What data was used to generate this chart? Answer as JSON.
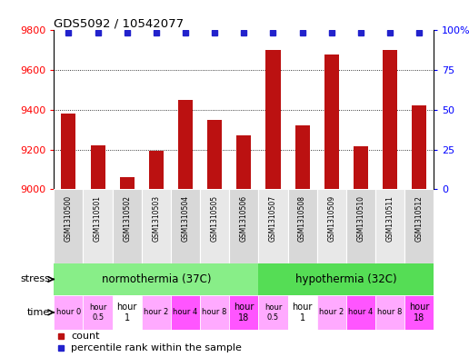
{
  "title": "GDS5092 / 10542077",
  "samples": [
    "GSM1310500",
    "GSM1310501",
    "GSM1310502",
    "GSM1310503",
    "GSM1310504",
    "GSM1310505",
    "GSM1310506",
    "GSM1310507",
    "GSM1310508",
    "GSM1310509",
    "GSM1310510",
    "GSM1310511",
    "GSM1310512"
  ],
  "counts": [
    9380,
    9220,
    9060,
    9195,
    9450,
    9350,
    9270,
    9700,
    9320,
    9680,
    9215,
    9700,
    9420
  ],
  "ylim": [
    9000,
    9800
  ],
  "yticks": [
    9000,
    9200,
    9400,
    9600,
    9800
  ],
  "right_yticks": [
    0,
    25,
    50,
    75,
    100
  ],
  "right_ylabels": [
    "0",
    "25",
    "50",
    "75",
    "100%"
  ],
  "bar_color": "#bb1111",
  "dot_color": "#2222cc",
  "normothermia_label": "normothermia (37C)",
  "hypothermia_label": "hypothermia (32C)",
  "normothermia_color": "#88ee88",
  "hypothermia_color": "#55dd55",
  "time_labels": [
    "hour 0",
    "hour\n0.5",
    "hour\n1",
    "hour 2",
    "hour 4",
    "hour 8",
    "hour\n18",
    "hour\n0.5",
    "hour\n1",
    "hour 2",
    "hour 4",
    "hour 8",
    "hour\n18"
  ],
  "time_colors": [
    "#ffaaff",
    "#ffaaff",
    "#ffffff",
    "#ffaaff",
    "#ff55ff",
    "#ffaaff",
    "#ff55ff",
    "#ffaaff",
    "#ffffff",
    "#ffaaff",
    "#ff55ff",
    "#ffaaff",
    "#ff55ff"
  ],
  "time_fontsizes": [
    6,
    6,
    7,
    6,
    6,
    6,
    7,
    6,
    7,
    6,
    6,
    6,
    7
  ],
  "stress_label": "stress",
  "time_label": "time",
  "legend_count": "count",
  "legend_pct": "percentile rank within the sample",
  "sample_bg_even": "#d8d8d8",
  "sample_bg_odd": "#e8e8e8"
}
